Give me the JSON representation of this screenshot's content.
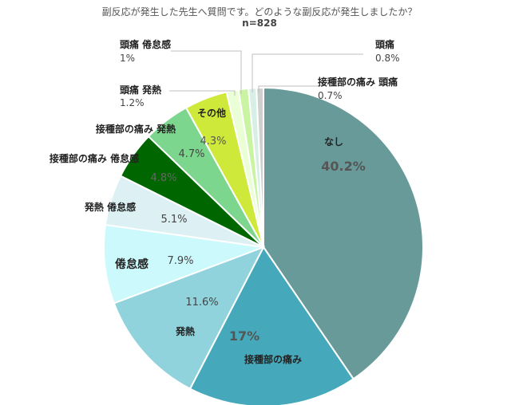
{
  "chart_data": {
    "type": "pie",
    "title": "副反応が発生した先生へ質問です。どのような副反応が発生しましたか？",
    "subtitle": "n=828",
    "slices": [
      {
        "label": "なし",
        "value": 40.2,
        "display": "40.2%",
        "color": "#689a9a"
      },
      {
        "label": "接種部の痛み",
        "value": 17.0,
        "display": "17%",
        "color": "#45a9bb"
      },
      {
        "label": "発熱",
        "value": 11.6,
        "display": "11.6%",
        "color": "#90d3dc"
      },
      {
        "label": "倦怠感",
        "value": 7.9,
        "display": "7.9%",
        "color": "#ccf9fb"
      },
      {
        "label": "発熱 倦怠感",
        "value": 5.1,
        "display": "5.1%",
        "color": "#ddf1f4"
      },
      {
        "label": "接種部の痛み 倦怠感",
        "value": 4.8,
        "display": "4.8%",
        "color": "#006600"
      },
      {
        "label": "接種部の痛み 発熱",
        "value": 4.7,
        "display": "4.7%",
        "color": "#7dd68e"
      },
      {
        "label": "その他",
        "value": 4.3,
        "display": "4.3%",
        "color": "#cfe93a"
      },
      {
        "label": "頭痛 発熱",
        "value": 1.2,
        "display": "1.2%",
        "color": "#eaffd6"
      },
      {
        "label": "頭痛 倦怠感",
        "value": 1.0,
        "display": "1%",
        "color": "#c9f5a3"
      },
      {
        "label": "頭痛",
        "value": 0.8,
        "display": "0.8%",
        "color": "#d8efe7"
      },
      {
        "label": "接種部の痛み 頭痛",
        "value": 0.7,
        "display": "0.7%",
        "color": "#cfcfcf"
      }
    ]
  }
}
